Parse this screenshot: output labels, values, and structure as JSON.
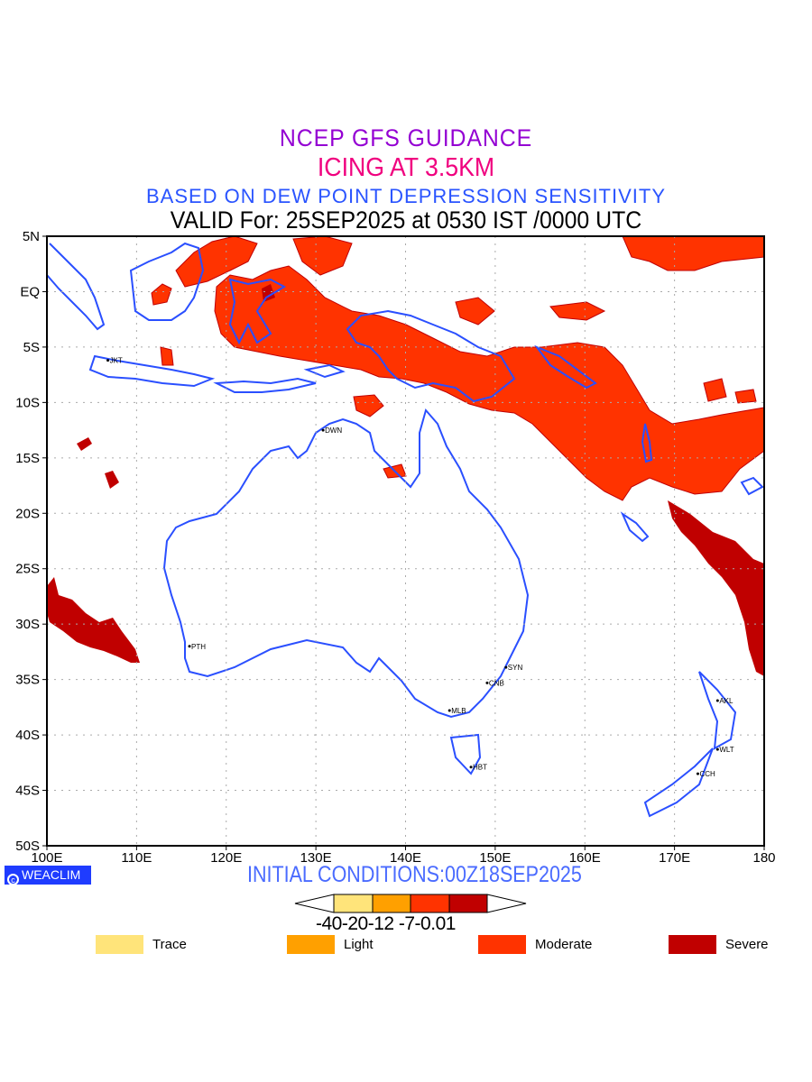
{
  "titles": {
    "line1": "NCEP GFS GUIDANCE",
    "line2": "ICING AT 3.5KM",
    "line3": "BASED ON DEW POINT DEPRESSION SENSITIVITY",
    "line4": "VALID For: 25SEP2025 at 0530 IST /0000 UTC"
  },
  "map": {
    "lon_range": [
      100,
      180
    ],
    "lat_range": [
      -50,
      5
    ],
    "lon_ticks": [
      {
        "v": 100,
        "label": "100E"
      },
      {
        "v": 110,
        "label": "110E"
      },
      {
        "v": 120,
        "label": "120E"
      },
      {
        "v": 130,
        "label": "130E"
      },
      {
        "v": 140,
        "label": "140E"
      },
      {
        "v": 150,
        "label": "150E"
      },
      {
        "v": 160,
        "label": "160E"
      },
      {
        "v": 170,
        "label": "170E"
      },
      {
        "v": 180,
        "label": "180"
      }
    ],
    "lat_ticks": [
      {
        "v": 5,
        "label": "5N"
      },
      {
        "v": 0,
        "label": "EQ"
      },
      {
        "v": -5,
        "label": "5S"
      },
      {
        "v": -10,
        "label": "10S"
      },
      {
        "v": -15,
        "label": "15S"
      },
      {
        "v": -20,
        "label": "20S"
      },
      {
        "v": -25,
        "label": "25S"
      },
      {
        "v": -30,
        "label": "30S"
      },
      {
        "v": -35,
        "label": "35S"
      },
      {
        "v": -40,
        "label": "40S"
      },
      {
        "v": -45,
        "label": "45S"
      },
      {
        "v": -50,
        "label": "50S"
      }
    ],
    "cities": [
      {
        "name": "JKT",
        "lon": 106.8,
        "lat": -6.2
      },
      {
        "name": "DWN",
        "lon": 130.8,
        "lat": -12.5
      },
      {
        "name": "PTH",
        "lon": 115.9,
        "lat": -32.0
      },
      {
        "name": "SYN",
        "lon": 151.2,
        "lat": -33.9
      },
      {
        "name": "CNB",
        "lon": 149.1,
        "lat": -35.3
      },
      {
        "name": "MLB",
        "lon": 144.9,
        "lat": -37.8
      },
      {
        "name": "HBT",
        "lon": 147.3,
        "lat": -42.9
      },
      {
        "name": "AKL",
        "lon": 174.8,
        "lat": -36.9
      },
      {
        "name": "WLT",
        "lon": 174.8,
        "lat": -41.3
      },
      {
        "name": "CCH",
        "lon": 172.6,
        "lat": -43.5
      }
    ],
    "coast_color": "#2a4fff"
  },
  "footer": {
    "credit": "WEACLIM",
    "initial_conditions": "INITIAL CONDITIONS:00Z18SEP2025"
  },
  "colorbar": {
    "labels": "-40-20-12 -7-0.01",
    "colors": [
      "#ffe47a",
      "#ffa000",
      "#ff3300",
      "#c00000"
    ]
  },
  "legend": [
    {
      "label": "Trace",
      "color": "#ffe47a"
    },
    {
      "label": "Light",
      "color": "#ffa000"
    },
    {
      "label": "Moderate",
      "color": "#ff3300"
    },
    {
      "label": "Severe",
      "color": "#c00000"
    }
  ]
}
